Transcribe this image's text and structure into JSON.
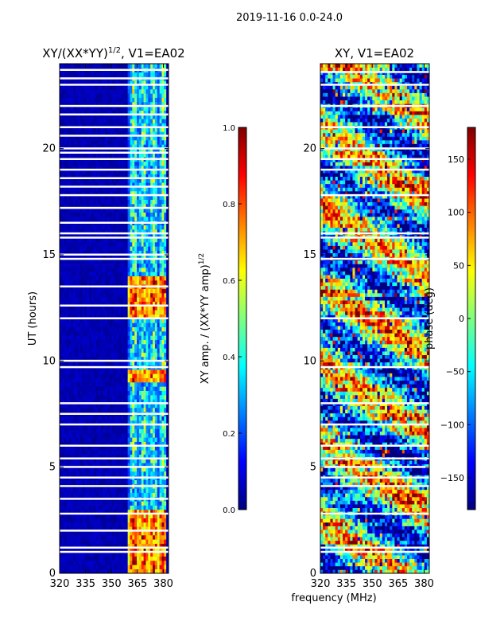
{
  "figure": {
    "suptitle": "2019-11-16 0.0-24.0",
    "xlabel": "frequency (MHz)"
  },
  "colors": {
    "jet": [
      "#00007f",
      "#0000ff",
      "#007fff",
      "#00ffff",
      "#7fff7f",
      "#ffff00",
      "#ff7f00",
      "#ff0000",
      "#7f0000"
    ],
    "background": "#00007f",
    "flag": "#ffffff"
  },
  "chart_data": [
    {
      "type": "heatmap",
      "name": "amplitude-ratio",
      "title": "XY/(XX*YY)^1/2, V1=EA02",
      "title_main": "XY/(XX*YY)",
      "title_exp": "1/2",
      "title_tail": ", V1=EA02",
      "xlabel": "",
      "ylabel": "UT (hours)",
      "xlim": [
        320,
        383
      ],
      "ylim": [
        0,
        24
      ],
      "xticks": [
        320,
        335,
        350,
        365,
        380
      ],
      "xtick_labels": [
        "320",
        "335",
        "350",
        "365",
        "380"
      ],
      "yticks": [
        0,
        5,
        10,
        15,
        20
      ],
      "ytick_labels": [
        "0",
        "5",
        "10",
        "15",
        "20"
      ],
      "active_band_mhz": [
        360,
        382
      ],
      "hot_blocks_hours": [
        [
          0.0,
          3.0
        ],
        [
          12.0,
          14.0
        ],
        [
          9.0,
          9.5
        ]
      ],
      "flagged_hours": [
        1.0,
        1.2,
        2.0,
        2.8,
        3.5,
        4.1,
        4.5,
        5.0,
        5.4,
        6.0,
        7.0,
        7.5,
        8.0,
        9.7,
        10.0,
        12.0,
        12.6,
        13.5,
        14.8,
        15.0,
        15.8,
        16.0,
        16.5,
        17.2,
        17.8,
        18.2,
        18.6,
        19.0,
        19.5,
        19.8,
        20.0,
        20.6,
        21.0,
        21.6,
        22.0,
        23.0,
        23.3,
        23.7
      ],
      "colorbar": {
        "label": "XY amp. / (XX*YY amp)^1/2",
        "label_main": "XY amp. / (XX*YY amp)",
        "label_exp": "1/2",
        "range": [
          0.0,
          1.0
        ],
        "ticks": [
          0.0,
          0.2,
          0.4,
          0.6,
          0.8,
          1.0
        ],
        "tick_labels": [
          "0.0",
          "0.2",
          "0.4",
          "0.6",
          "0.8",
          "1.0"
        ]
      }
    },
    {
      "type": "heatmap",
      "name": "phase",
      "title": "XY, V1=EA02",
      "xlabel": "frequency (MHz)",
      "ylabel": "",
      "xlim": [
        320,
        383
      ],
      "ylim": [
        0,
        24
      ],
      "xticks": [
        320,
        335,
        350,
        365,
        380
      ],
      "xtick_labels": [
        "320",
        "335",
        "350",
        "365",
        "380"
      ],
      "yticks": [
        0,
        5,
        10,
        15,
        20
      ],
      "ytick_labels": [
        "0",
        "5",
        "10",
        "15",
        "20"
      ],
      "flagged_hours": [
        1.0,
        1.2,
        2.8,
        4.1,
        4.5,
        5.0,
        5.4,
        6.0,
        7.0,
        8.0,
        9.7,
        12.0,
        14.8,
        15.8,
        16.0,
        17.8,
        19.0,
        19.5,
        20.0,
        21.0,
        22.0,
        23.0,
        23.6
      ],
      "colorbar": {
        "label": "phase (deg)",
        "range": [
          -180,
          180
        ],
        "ticks": [
          -150,
          -100,
          -50,
          0,
          50,
          100,
          150
        ],
        "tick_labels": [
          "−150",
          "−100",
          "−50",
          "0",
          "50",
          "100",
          "150"
        ]
      }
    }
  ]
}
